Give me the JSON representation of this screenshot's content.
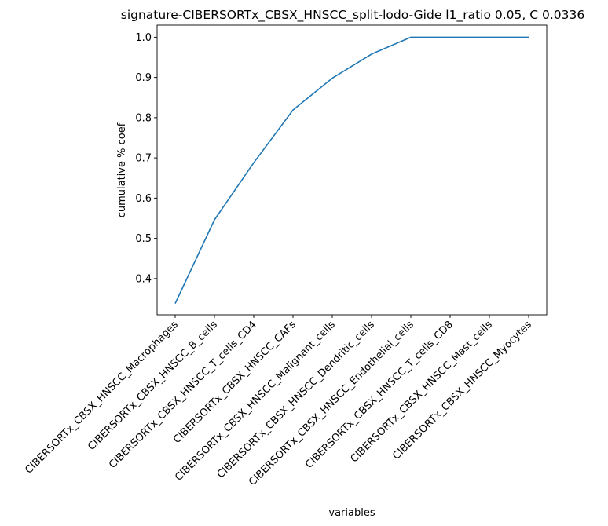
{
  "chart_data": {
    "type": "line",
    "title": "signature-CIBERSORTx_CBSX_HNSCC_split-lodo-Gide l1_ratio 0.05, C 0.0336",
    "xlabel": "variables",
    "ylabel": "cumulative % coef",
    "categories": [
      "CIBERSORTx_CBSX_HNSCC_Macrophages",
      "CIBERSORTx_CBSX_HNSCC_B_cells",
      "CIBERSORTx_CBSX_HNSCC_T_cells_CD4",
      "CIBERSORTx_CBSX_HNSCC_CAFs",
      "CIBERSORTx_CBSX_HNSCC_Malignant_cells",
      "CIBERSORTx_CBSX_HNSCC_Dendritic_cells",
      "CIBERSORTx_CBSX_HNSCC_Endothelial_cells",
      "CIBERSORTx_CBSX_HNSCC_T_cells_CD8",
      "CIBERSORTx_CBSX_HNSCC_Mast_cells",
      "CIBERSORTx_CBSX_HNSCC_Myocytes"
    ],
    "series": [
      {
        "values": [
          0.338,
          0.546,
          0.688,
          0.819,
          0.898,
          0.958,
          1.0,
          1.0,
          1.0,
          1.0
        ],
        "color": "#1f77b4"
      }
    ],
    "ylim": [
      0.31,
      1.03
    ],
    "yticks": [
      0.4,
      0.5,
      0.6,
      0.7,
      0.8,
      0.9,
      1.0
    ],
    "ytick_labels": [
      "0.4",
      "0.5",
      "0.6",
      "0.7",
      "0.8",
      "0.9",
      "1.0"
    ],
    "grid": false,
    "legend": false
  }
}
